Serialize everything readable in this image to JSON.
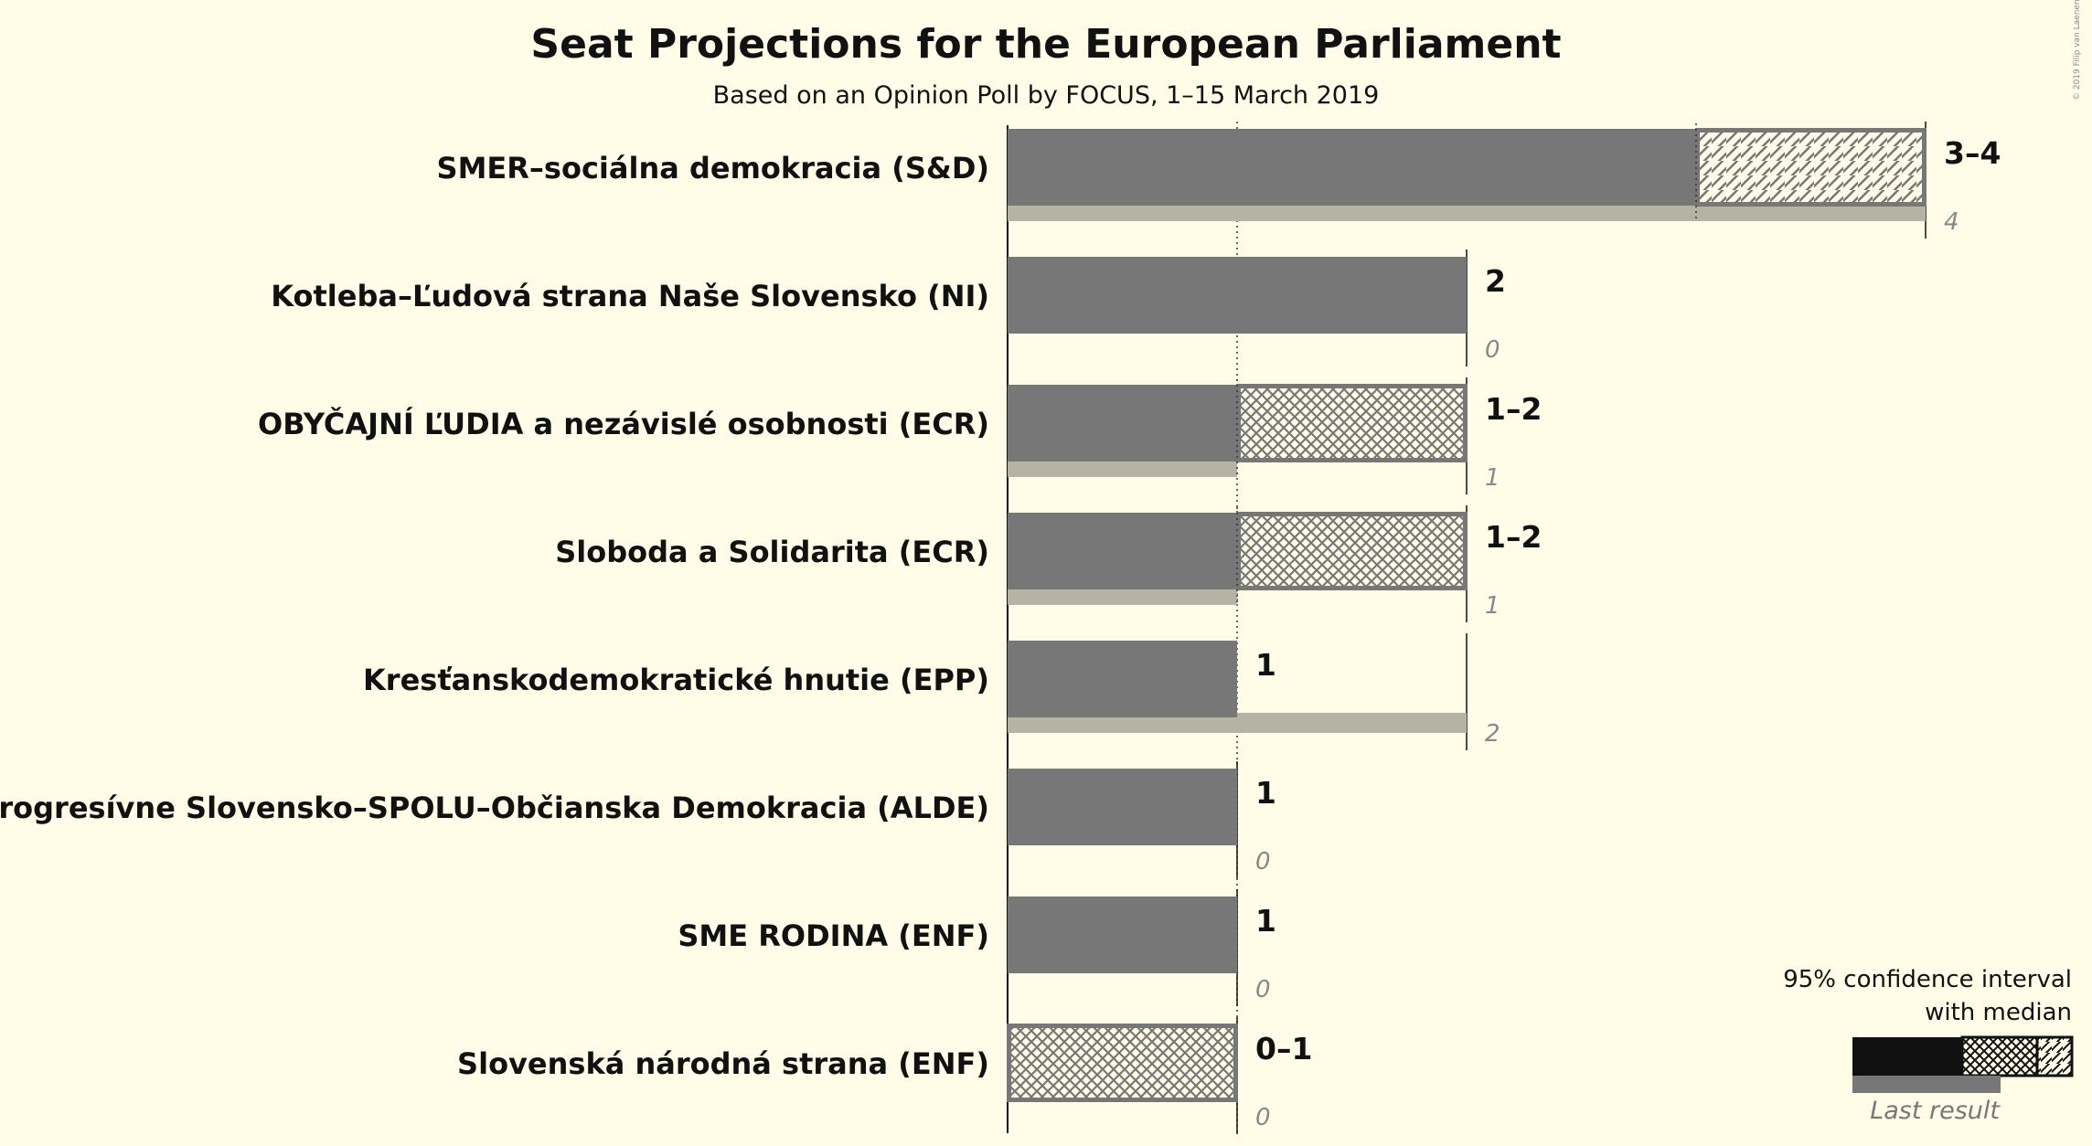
{
  "chart_data": {
    "type": "bar",
    "title": "Seat Projections for the European Parliament",
    "subtitle": "Based on an Opinion Poll by FOCUS, 1–15 March 2019",
    "copyright": "© 2019 Filip van Laenen",
    "xlim": [
      0,
      4
    ],
    "gridlines": [
      1,
      2
    ],
    "categories": [
      "SMER–sociálna demokracia (S&D)",
      "Kotleba–Ľudová strana Naše Slovensko (NI)",
      "OBYČAJNÍ ĽUDIA a nezávislé osobnosti (ECR)",
      "Sloboda a Solidarita (ECR)",
      "Kresťanskodemokratické hnutie (EPP)",
      "Progresívne Slovensko–SPOLU–Občianska Demokracia (ALDE)",
      "SME RODINA (ENF)",
      "Slovenská národná strana (ENF)"
    ],
    "series": [
      {
        "name": "95% confidence interval with median",
        "low": [
          3,
          2,
          1,
          1,
          1,
          1,
          1,
          0
        ],
        "median": [
          3,
          2,
          1,
          1,
          1,
          1,
          1,
          0
        ],
        "high": [
          4,
          2,
          2,
          2,
          1,
          1,
          1,
          1
        ],
        "labels": [
          "3–4",
          "2",
          "1–2",
          "1–2",
          "1",
          "1",
          "1",
          "0–1"
        ]
      },
      {
        "name": "Last result",
        "values": [
          4,
          0,
          1,
          1,
          2,
          0,
          0,
          0
        ],
        "labels": [
          "4",
          "0",
          "1",
          "1",
          "2",
          "0",
          "0",
          "0"
        ]
      }
    ],
    "legend": {
      "line1": "95% confidence interval",
      "line2": "with median",
      "last": "Last result",
      "position": "bottom-right"
    },
    "colors": {
      "background": "#fffde8",
      "bar": "#777777",
      "last": "#b5b3a4",
      "legend_solid": "#111111"
    }
  }
}
